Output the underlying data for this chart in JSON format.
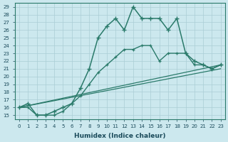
{
  "xlabel": "Humidex (Indice chaleur)",
  "bg_color": "#cce8ee",
  "grid_color": "#aacdd5",
  "line_color": "#2a7a6a",
  "xlim": [
    -0.5,
    23.5
  ],
  "ylim": [
    14.5,
    29.5
  ],
  "xticks": [
    0,
    1,
    2,
    3,
    4,
    5,
    6,
    7,
    8,
    9,
    10,
    11,
    12,
    13,
    14,
    15,
    16,
    17,
    18,
    19,
    20,
    21,
    22,
    23
  ],
  "yticks": [
    15,
    16,
    17,
    18,
    19,
    20,
    21,
    22,
    23,
    24,
    25,
    26,
    27,
    28,
    29
  ],
  "series1_x": [
    0,
    1,
    2,
    3,
    4,
    5,
    6,
    7,
    8,
    9,
    10,
    11,
    12,
    13,
    14,
    15,
    16,
    17,
    18,
    19,
    20,
    21,
    22,
    23
  ],
  "series1_y": [
    16.0,
    16.5,
    15.0,
    15.0,
    15.5,
    16.0,
    16.5,
    18.5,
    21.0,
    25.0,
    26.5,
    27.5,
    26.0,
    29.0,
    27.5,
    27.5,
    27.5,
    26.0,
    27.5,
    23.0,
    22.0,
    21.5,
    21.0,
    21.5
  ],
  "series2_x": [
    0,
    1,
    2,
    3,
    4,
    5,
    6,
    7,
    8,
    9,
    10,
    11,
    12,
    13,
    14,
    15,
    16,
    17,
    18,
    19,
    20,
    21,
    22,
    23
  ],
  "series2_y": [
    16.0,
    16.0,
    15.0,
    15.0,
    15.0,
    15.5,
    16.5,
    17.5,
    19.0,
    20.5,
    21.5,
    22.5,
    23.5,
    23.5,
    24.0,
    24.0,
    22.0,
    23.0,
    23.0,
    23.0,
    21.5,
    21.5,
    21.0,
    21.5
  ],
  "series3_x": [
    0,
    23
  ],
  "series3_y": [
    16.0,
    21.5
  ],
  "series4_x": [
    0,
    23
  ],
  "series4_y": [
    16.0,
    21.0
  ]
}
